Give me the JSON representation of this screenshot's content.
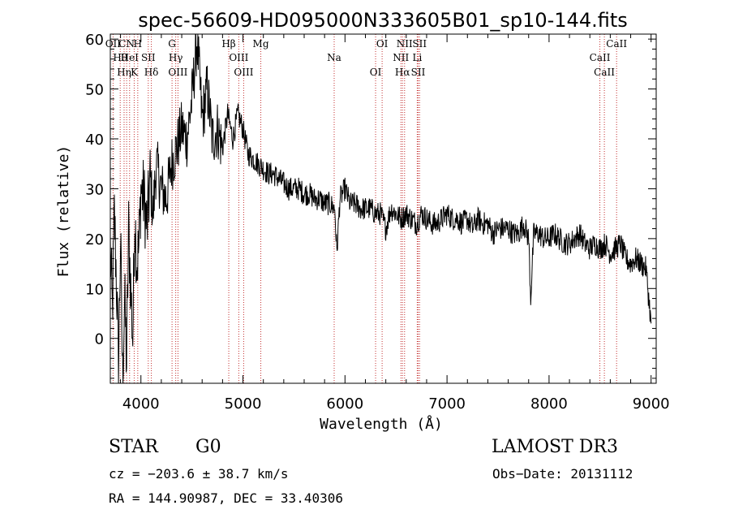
{
  "chart_data": {
    "type": "line",
    "title": "spec-56609-HD095000N333605B01_sp10-144.fits",
    "xlabel": "Wavelength (Å)",
    "ylabel": "Flux (relative)",
    "xlim": [
      3700,
      9050
    ],
    "ylim": [
      -9,
      61
    ],
    "xticks": [
      4000,
      5000,
      6000,
      7000,
      8000,
      9000
    ],
    "yticks": [
      0,
      10,
      20,
      30,
      40,
      50,
      60
    ],
    "series": [
      {
        "name": "flux",
        "x": [
          3700,
          3720,
          3740,
          3760,
          3780,
          3800,
          3820,
          3840,
          3860,
          3880,
          3900,
          3920,
          3940,
          3960,
          3980,
          4000,
          4030,
          4060,
          4090,
          4120,
          4150,
          4200,
          4250,
          4300,
          4350,
          4400,
          4450,
          4500,
          4550,
          4600,
          4650,
          4700,
          4750,
          4800,
          4850,
          4900,
          4950,
          5000,
          5050,
          5100,
          5150,
          5200,
          5250,
          5300,
          5350,
          5400,
          5450,
          5500,
          5550,
          5600,
          5650,
          5700,
          5750,
          5800,
          5850,
          5900,
          5920,
          5950,
          6000,
          6050,
          6100,
          6150,
          6200,
          6250,
          6300,
          6350,
          6400,
          6450,
          6500,
          6550,
          6600,
          6650,
          6700,
          6750,
          6800,
          6850,
          6900,
          6950,
          7000,
          7050,
          7100,
          7150,
          7200,
          7250,
          7300,
          7350,
          7400,
          7450,
          7500,
          7550,
          7600,
          7650,
          7700,
          7750,
          7800,
          7820,
          7850,
          7900,
          7950,
          8000,
          8050,
          8100,
          8150,
          8200,
          8250,
          8300,
          8350,
          8400,
          8450,
          8500,
          8550,
          8600,
          8650,
          8700,
          8750,
          8800,
          8850,
          8900,
          8950,
          9000
        ],
        "y": [
          18,
          5,
          25,
          12,
          -6,
          20,
          -8,
          8,
          -5,
          22,
          10,
          0,
          25,
          15,
          18,
          30,
          28,
          22,
          32,
          25,
          35,
          30,
          28,
          35,
          38,
          42,
          40,
          48,
          60,
          44,
          50,
          40,
          42,
          38,
          45,
          40,
          45,
          42,
          37,
          36,
          35,
          34,
          33,
          33,
          32,
          31,
          30,
          30,
          30,
          29,
          29,
          28,
          28,
          27,
          27,
          26,
          17,
          28,
          30,
          27,
          27,
          26,
          26,
          26,
          25,
          25,
          22,
          26,
          25,
          24,
          25,
          24,
          23,
          25,
          24,
          23,
          23,
          24,
          25,
          24,
          24,
          23,
          24,
          22,
          24,
          23,
          23,
          21,
          22,
          22,
          22,
          21,
          21,
          23,
          20,
          8,
          21,
          21,
          20,
          20,
          21,
          20,
          19,
          19,
          20,
          21,
          19,
          18,
          19,
          18,
          19,
          17,
          18,
          19,
          16,
          15,
          16,
          15,
          14,
          3
        ]
      }
    ],
    "lines": [
      {
        "label": "OII",
        "x": 3727
      },
      {
        "label": "Hθ",
        "x": 3797
      },
      {
        "label": "Hη",
        "x": 3835
      },
      {
        "label": "CN",
        "x": 3860
      },
      {
        "label": "HeI",
        "x": 3889
      },
      {
        "label": "K",
        "x": 3934
      },
      {
        "label": "H",
        "x": 3969
      },
      {
        "label": "SII",
        "x": 4072
      },
      {
        "label": "Hδ",
        "x": 4102
      },
      {
        "label": "G",
        "x": 4305
      },
      {
        "label": "Hγ",
        "x": 4341
      },
      {
        "label": "OIII",
        "x": 4363
      },
      {
        "label": "Hβ",
        "x": 4861
      },
      {
        "label": "OIII",
        "x": 4959
      },
      {
        "label": "OIII",
        "x": 5007
      },
      {
        "label": "Mg",
        "x": 5175
      },
      {
        "label": "Na",
        "x": 5894
      },
      {
        "label": "OI",
        "x": 6300
      },
      {
        "label": "OI",
        "x": 6364
      },
      {
        "label": "NII",
        "x": 6548
      },
      {
        "label": "Hα",
        "x": 6563
      },
      {
        "label": "NII",
        "x": 6584
      },
      {
        "label": "Li",
        "x": 6708
      },
      {
        "label": "SII",
        "x": 6717
      },
      {
        "label": "SII",
        "x": 6731
      },
      {
        "label": "CaII",
        "x": 8498
      },
      {
        "label": "CaII",
        "x": 8542
      },
      {
        "label": "CaII",
        "x": 8662
      }
    ]
  },
  "info": {
    "object_type": "STAR",
    "subclass": "G0",
    "survey": "LAMOST DR3",
    "cz": "cz = −203.6 ± 38.7 km/s",
    "obs_date": "Obs−Date: 20131112",
    "coords": "RA = 144.90987, DEC =  33.40306"
  }
}
